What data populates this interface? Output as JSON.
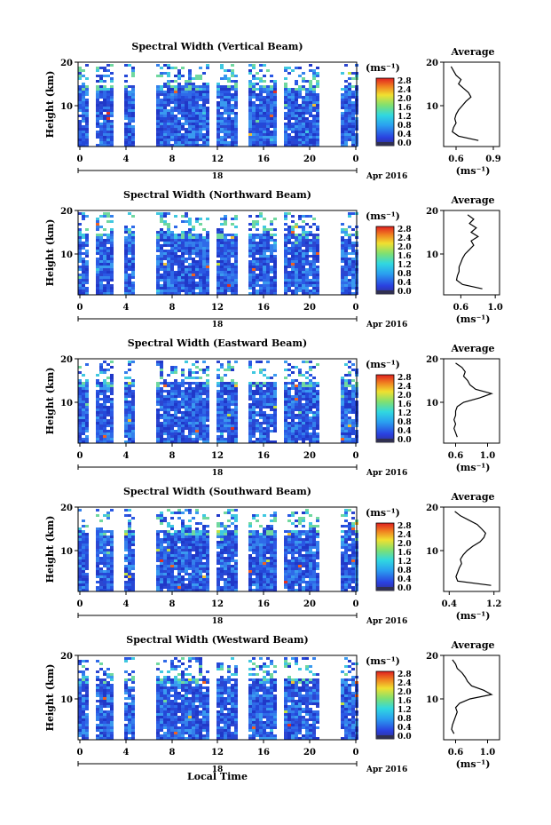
{
  "figure": {
    "date_label": "Apr 2016",
    "day_label": "18",
    "xlabel": "Local Time",
    "average_title": "Average",
    "cbar_unit": "(ms⁻¹)",
    "avg_unit": "(ms⁻¹)"
  },
  "chart_data": [
    {
      "type": "heatmap",
      "title": "Spectral Width (Vertical Beam)",
      "ylabel": "Height (km)",
      "x_ticks": [
        "0",
        "4",
        "8",
        "12",
        "16",
        "20",
        "0"
      ],
      "y_ticks": [
        "20",
        "10"
      ],
      "colorbar_ticks": [
        "2.8",
        "2.4",
        "2.0",
        "1.6",
        "1.2",
        "0.8",
        "0.4",
        "0.0"
      ],
      "data_top_km": 15,
      "avg_xticks": [
        "0.6",
        "0.9"
      ],
      "avg_xlim": [
        0.5,
        0.95
      ],
      "avg_profile": [
        [
          0.78,
          2
        ],
        [
          0.62,
          3
        ],
        [
          0.57,
          4
        ],
        [
          0.58,
          5
        ],
        [
          0.6,
          6
        ],
        [
          0.59,
          7
        ],
        [
          0.6,
          8
        ],
        [
          0.62,
          9
        ],
        [
          0.65,
          10
        ],
        [
          0.68,
          11
        ],
        [
          0.72,
          12
        ],
        [
          0.7,
          13
        ],
        [
          0.66,
          14
        ],
        [
          0.62,
          15
        ],
        [
          0.64,
          16
        ],
        [
          0.6,
          17
        ],
        [
          0.58,
          18
        ],
        [
          0.56,
          19
        ]
      ]
    },
    {
      "type": "heatmap",
      "title": "Spectral Width (Northward Beam)",
      "ylabel": "Height (km)",
      "x_ticks": [
        "0",
        "4",
        "8",
        "12",
        "16",
        "20",
        "0"
      ],
      "y_ticks": [
        "20",
        "10"
      ],
      "colorbar_ticks": [
        "2.8",
        "2.4",
        "2.0",
        "1.6",
        "1.2",
        "0.8",
        "0.4",
        "0.0"
      ],
      "data_top_km": 15,
      "avg_xticks": [
        "0.6",
        "1.0"
      ],
      "avg_xlim": [
        0.4,
        1.05
      ],
      "avg_profile": [
        [
          0.85,
          2
        ],
        [
          0.62,
          3
        ],
        [
          0.55,
          4
        ],
        [
          0.56,
          5
        ],
        [
          0.58,
          6
        ],
        [
          0.58,
          7
        ],
        [
          0.6,
          8
        ],
        [
          0.62,
          9
        ],
        [
          0.65,
          10
        ],
        [
          0.7,
          11
        ],
        [
          0.75,
          12
        ],
        [
          0.72,
          13
        ],
        [
          0.8,
          14
        ],
        [
          0.72,
          15
        ],
        [
          0.78,
          16
        ],
        [
          0.7,
          17
        ],
        [
          0.75,
          18
        ],
        [
          0.68,
          19
        ]
      ]
    },
    {
      "type": "heatmap",
      "title": "Spectral Width (Eastward Beam)",
      "ylabel": "Height (km)",
      "x_ticks": [
        "0",
        "4",
        "8",
        "12",
        "16",
        "20",
        "0"
      ],
      "y_ticks": [
        "20",
        "10"
      ],
      "colorbar_ticks": [
        "2.8",
        "2.4",
        "2.0",
        "1.6",
        "1.2",
        "0.8",
        "0.4",
        "0.0"
      ],
      "data_top_km": 15,
      "avg_xticks": [
        "0.6",
        "1.0"
      ],
      "avg_xlim": [
        0.45,
        1.15
      ],
      "avg_profile": [
        [
          0.62,
          2
        ],
        [
          0.6,
          3
        ],
        [
          0.58,
          4
        ],
        [
          0.6,
          5
        ],
        [
          0.58,
          6
        ],
        [
          0.6,
          7
        ],
        [
          0.6,
          8
        ],
        [
          0.62,
          9
        ],
        [
          0.7,
          10
        ],
        [
          0.9,
          11
        ],
        [
          1.05,
          12
        ],
        [
          0.85,
          13
        ],
        [
          0.78,
          14
        ],
        [
          0.75,
          15
        ],
        [
          0.7,
          16
        ],
        [
          0.72,
          17
        ],
        [
          0.68,
          18
        ],
        [
          0.6,
          19
        ]
      ]
    },
    {
      "type": "heatmap",
      "title": "Spectral Width (Southward Beam)",
      "ylabel": "Height (km)",
      "x_ticks": [
        "0",
        "4",
        "8",
        "12",
        "16",
        "20",
        "0"
      ],
      "y_ticks": [
        "20",
        "10"
      ],
      "colorbar_ticks": [
        "2.8",
        "2.4",
        "2.0",
        "1.6",
        "1.2",
        "0.8",
        "0.4",
        "0.0"
      ],
      "data_top_km": 15,
      "avg_xticks": [
        "0.4",
        "1.2"
      ],
      "avg_xlim": [
        0.3,
        1.3
      ],
      "avg_profile": [
        [
          1.15,
          2
        ],
        [
          0.55,
          3
        ],
        [
          0.52,
          4
        ],
        [
          0.55,
          5
        ],
        [
          0.58,
          6
        ],
        [
          0.62,
          7
        ],
        [
          0.6,
          8
        ],
        [
          0.65,
          9
        ],
        [
          0.72,
          10
        ],
        [
          0.82,
          11
        ],
        [
          0.95,
          12
        ],
        [
          1.02,
          13
        ],
        [
          1.05,
          14
        ],
        [
          0.98,
          15
        ],
        [
          0.9,
          16
        ],
        [
          0.75,
          17
        ],
        [
          0.6,
          18
        ],
        [
          0.5,
          19
        ]
      ]
    },
    {
      "type": "heatmap",
      "title": "Spectral Width (Westward Beam)",
      "ylabel": "Height (km)",
      "x_ticks": [
        "0",
        "4",
        "8",
        "12",
        "16",
        "20",
        "0"
      ],
      "y_ticks": [
        "20",
        "10"
      ],
      "colorbar_ticks": [
        "2.8",
        "2.4",
        "2.0",
        "1.6",
        "1.2",
        "0.8",
        "0.4",
        "0.0"
      ],
      "data_top_km": 15,
      "avg_xticks": [
        "0.6",
        "1.0"
      ],
      "avg_xlim": [
        0.45,
        1.15
      ],
      "avg_profile": [
        [
          0.58,
          2
        ],
        [
          0.55,
          3
        ],
        [
          0.56,
          4
        ],
        [
          0.58,
          5
        ],
        [
          0.6,
          6
        ],
        [
          0.62,
          7
        ],
        [
          0.6,
          8
        ],
        [
          0.65,
          9
        ],
        [
          0.78,
          10
        ],
        [
          1.05,
          11
        ],
        [
          0.95,
          12
        ],
        [
          0.8,
          13
        ],
        [
          0.75,
          14
        ],
        [
          0.72,
          15
        ],
        [
          0.68,
          16
        ],
        [
          0.62,
          17
        ],
        [
          0.6,
          18
        ],
        [
          0.56,
          19
        ]
      ]
    }
  ]
}
